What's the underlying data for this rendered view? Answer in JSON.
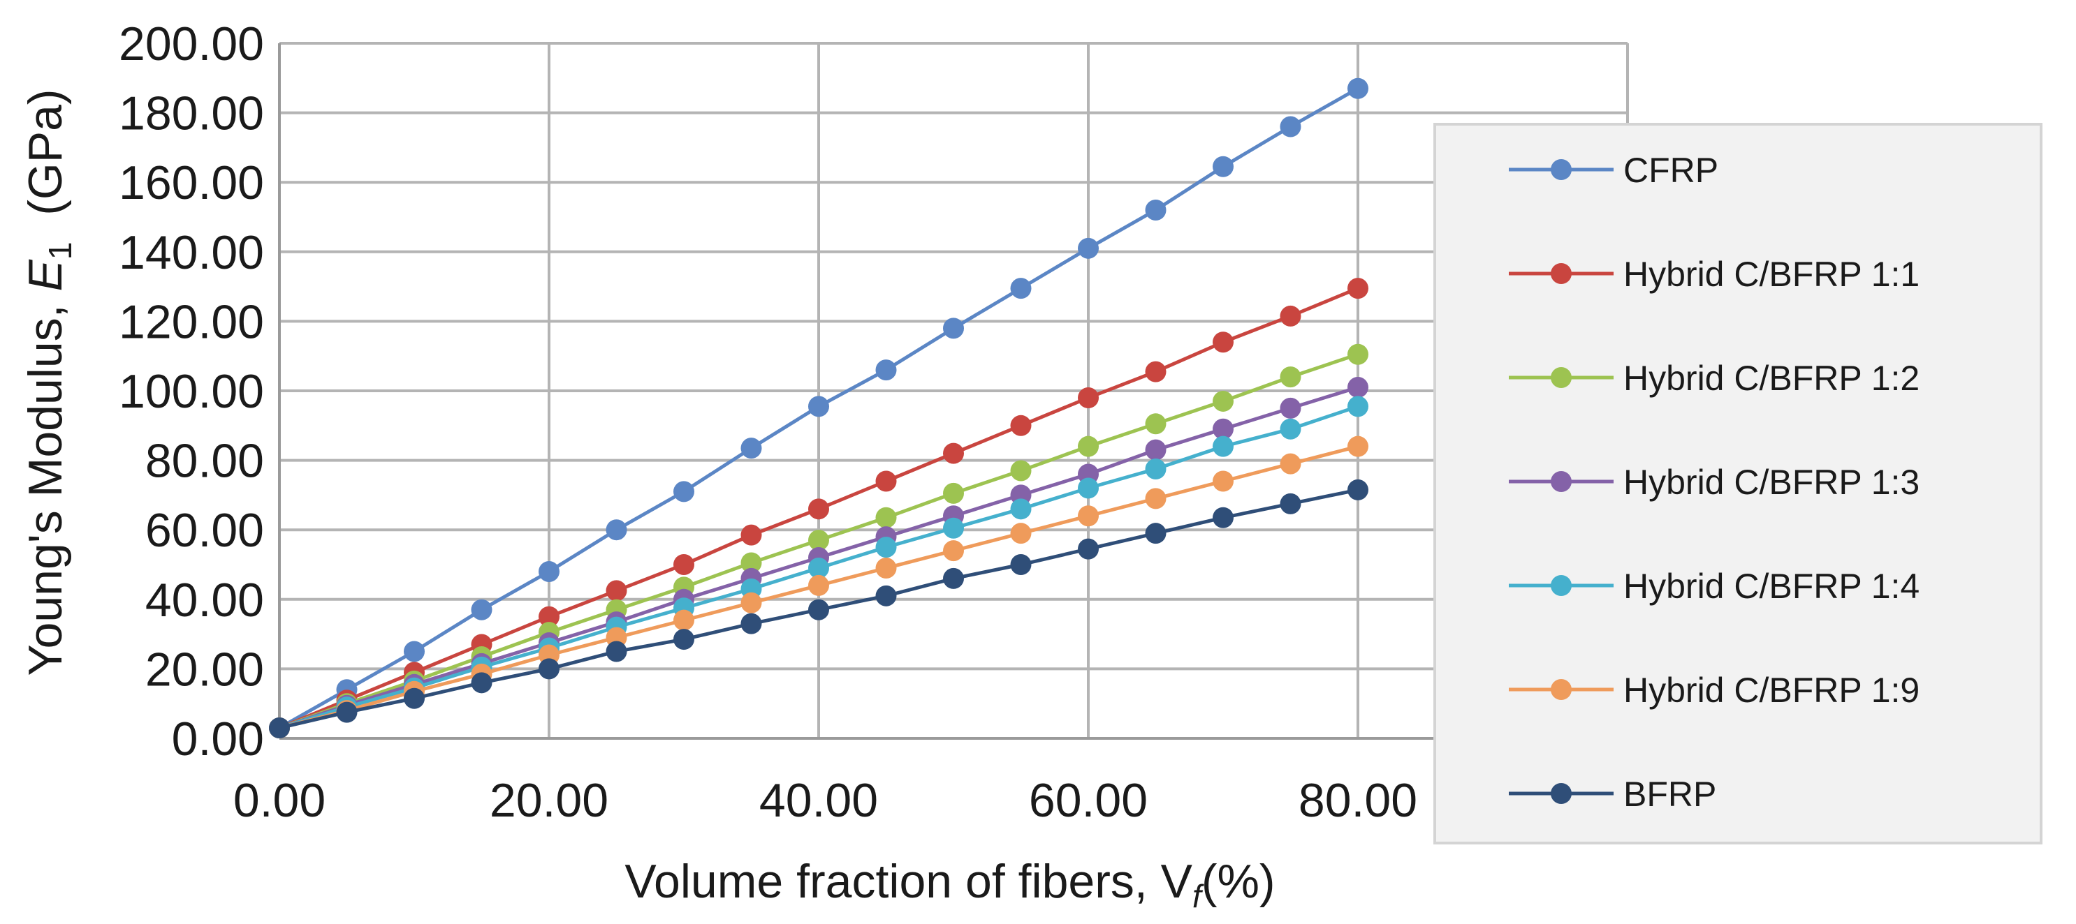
{
  "chart_data": {
    "type": "line",
    "title": "",
    "xlabel_main": "Volume fraction of fibers, V",
    "xlabel_sub": "f",
    "xlabel_tail": "(%)",
    "ylabel_main": "Young's Modulus, ",
    "ylabel_var": "E",
    "ylabel_sub": "1",
    "ylabel_tail": "  (GPa)",
    "xlim": [
      0,
      100
    ],
    "ylim": [
      0,
      200
    ],
    "x_tick_values": [
      0,
      20,
      40,
      60,
      80
    ],
    "x_tick_labels": [
      "0.00",
      "20.00",
      "40.00",
      "60.00",
      "80.00"
    ],
    "y_tick_values": [
      0,
      20,
      40,
      60,
      80,
      100,
      120,
      140,
      160,
      180,
      200
    ],
    "y_tick_labels": [
      "0.00",
      "20.00",
      "40.00",
      "60.00",
      "80.00",
      "100.00",
      "120.00",
      "140.00",
      "160.00",
      "180.00",
      "200.00"
    ],
    "grid": true,
    "legend_position": "right",
    "x": [
      0,
      5,
      10,
      15,
      20,
      25,
      30,
      35,
      40,
      45,
      50,
      55,
      60,
      65,
      70,
      75,
      80
    ],
    "series": [
      {
        "name": "CFRP",
        "color": "#5b86c5",
        "values": [
          3,
          14,
          25,
          37,
          48,
          60,
          71,
          83.5,
          95.5,
          106,
          118,
          129.5,
          141,
          152,
          164.5,
          176,
          187
        ]
      },
      {
        "name": "Hybrid C/BFRP 1:1",
        "color": "#c9453f",
        "values": [
          3,
          11,
          19,
          27,
          35,
          42.5,
          50,
          58.5,
          66,
          74,
          82,
          90,
          98,
          105.5,
          114,
          121.5,
          129.5
        ]
      },
      {
        "name": "Hybrid C/BFRP 1:2",
        "color": "#9dc351",
        "values": [
          3,
          10,
          16.5,
          23.5,
          30.5,
          37,
          43.5,
          50.5,
          57,
          63.5,
          70.5,
          77,
          84,
          90.5,
          97,
          104,
          110.5
        ]
      },
      {
        "name": "Hybrid C/BFRP 1:3",
        "color": "#8462a8",
        "values": [
          3,
          9.5,
          15.5,
          21.5,
          27.5,
          33.5,
          40,
          46,
          52,
          58,
          64,
          70,
          76,
          83,
          89,
          95,
          101
        ]
      },
      {
        "name": "Hybrid C/BFRP 1:4",
        "color": "#45b0cd",
        "values": [
          3,
          9,
          14.5,
          20.5,
          26,
          32,
          37.5,
          43,
          49,
          55,
          60.5,
          66,
          72,
          77.5,
          84,
          89,
          95.5
        ]
      },
      {
        "name": "Hybrid C/BFRP 1:9",
        "color": "#ef9b5b",
        "values": [
          3,
          8,
          13.5,
          18.5,
          24,
          29,
          34,
          39,
          44,
          49,
          54,
          59,
          64,
          69,
          74,
          79,
          84
        ]
      },
      {
        "name": "BFRP",
        "color": "#2f4e78",
        "values": [
          3,
          7.5,
          11.5,
          16,
          20,
          25,
          28.5,
          33,
          37,
          41,
          46,
          50,
          54.5,
          59,
          63.5,
          67.5,
          71.5
        ]
      }
    ]
  }
}
